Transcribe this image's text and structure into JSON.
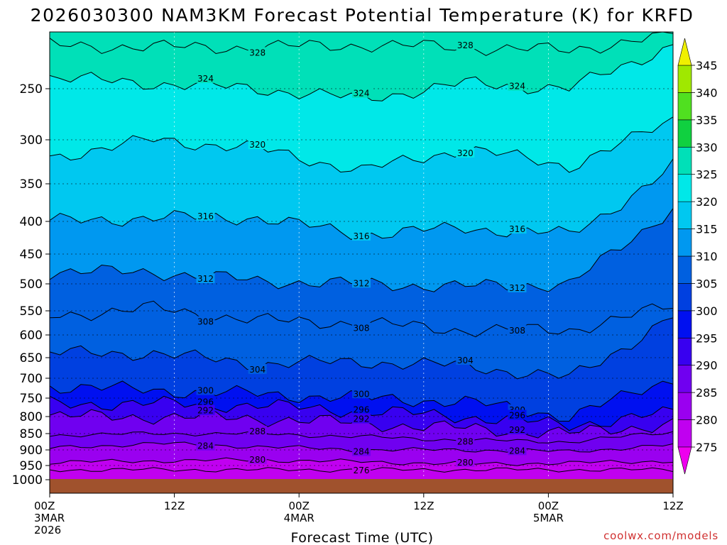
{
  "chart_data": {
    "type": "contour-filled time-height cross-section",
    "title": "2026030300 NAM3KM Forecast Potential Temperature (K) for KRFD",
    "xlabel": "Forecast Time (UTC)",
    "ylabel": "",
    "y_axis_units": "hPa (pressure)",
    "y_ticks": [
      250,
      300,
      350,
      400,
      450,
      500,
      550,
      600,
      650,
      700,
      750,
      800,
      850,
      900,
      950,
      1000
    ],
    "y_range": [
      200,
      1000
    ],
    "x_ticks": [
      {
        "hour": 0,
        "lines": [
          "00Z",
          "3MAR",
          "2026"
        ]
      },
      {
        "hour": 12,
        "lines": [
          "12Z"
        ]
      },
      {
        "hour": 24,
        "lines": [
          "00Z",
          "4MAR"
        ]
      },
      {
        "hour": 36,
        "lines": [
          "12Z"
        ]
      },
      {
        "hour": 48,
        "lines": [
          "00Z",
          "5MAR"
        ]
      },
      {
        "hour": 60,
        "lines": [
          "12Z"
        ]
      }
    ],
    "x_range": [
      0,
      60
    ],
    "colorbar": {
      "levels": [
        275,
        280,
        285,
        290,
        295,
        300,
        305,
        310,
        315,
        320,
        325,
        330,
        335,
        340,
        345
      ],
      "colors": [
        "#ee00ee",
        "#c000f0",
        "#9a00f0",
        "#7000f0",
        "#3800f0",
        "#0010f0",
        "#0040e0",
        "#0060e0",
        "#0098f0",
        "#00c8f0",
        "#00e8e8",
        "#00e0b8",
        "#10d040",
        "#50e020",
        "#a0e800",
        "#f0f000"
      ]
    },
    "contour_interval_K": 2,
    "surface_fill_color": "#a0522d",
    "series": [
      {
        "name": "theta 276K",
        "pressure": [
          965,
          965,
          965,
          965,
          965,
          965,
          965
        ],
        "hour": [
          0,
          10,
          20,
          30,
          40,
          50,
          60
        ]
      },
      {
        "name": "theta 280K",
        "pressure": [
          940,
          935,
          932,
          938,
          945,
          942,
          935
        ],
        "hour": [
          0,
          10,
          20,
          30,
          40,
          50,
          60
        ]
      },
      {
        "name": "theta 284K",
        "pressure": [
          895,
          880,
          890,
          900,
          900,
          905,
          885
        ],
        "hour": [
          0,
          10,
          20,
          30,
          40,
          50,
          60
        ]
      },
      {
        "name": "theta 288K",
        "pressure": [
          855,
          850,
          850,
          860,
          870,
          875,
          845
        ],
        "hour": [
          0,
          10,
          20,
          30,
          40,
          50,
          60
        ]
      },
      {
        "name": "theta 292K",
        "pressure": [
          800,
          800,
          805,
          820,
          835,
          850,
          820
        ],
        "hour": [
          0,
          10,
          20,
          30,
          40,
          50,
          60
        ]
      },
      {
        "name": "theta 296K",
        "pressure": [
          765,
          765,
          770,
          785,
          800,
          825,
          790
        ],
        "hour": [
          0,
          10,
          20,
          30,
          40,
          50,
          60
        ]
      },
      {
        "name": "theta 300K",
        "pressure": [
          720,
          730,
          740,
          750,
          760,
          800,
          700
        ],
        "hour": [
          0,
          10,
          20,
          30,
          40,
          50,
          60
        ]
      },
      {
        "name": "theta 304K",
        "pressure": [
          640,
          640,
          665,
          660,
          670,
          700,
          560
        ],
        "hour": [
          0,
          10,
          20,
          30,
          40,
          50,
          60
        ]
      },
      {
        "name": "theta 308K",
        "pressure": [
          560,
          545,
          570,
          575,
          590,
          590,
          540
        ],
        "hour": [
          0,
          10,
          20,
          30,
          40,
          50,
          60
        ]
      },
      {
        "name": "theta 312K",
        "pressure": [
          480,
          480,
          495,
          500,
          505,
          500,
          380
        ],
        "hour": [
          0,
          10,
          20,
          30,
          40,
          50,
          60
        ]
      },
      {
        "name": "theta 316K",
        "pressure": [
          400,
          395,
          395,
          420,
          410,
          420,
          330
        ],
        "hour": [
          0,
          10,
          20,
          30,
          40,
          50,
          60
        ]
      },
      {
        "name": "theta 320K",
        "pressure": [
          320,
          300,
          310,
          335,
          310,
          330,
          280
        ],
        "hour": [
          0,
          10,
          20,
          30,
          40,
          50,
          60
        ]
      },
      {
        "name": "theta 324K",
        "pressure": [
          240,
          245,
          250,
          260,
          245,
          250,
          210
        ],
        "hour": [
          0,
          10,
          20,
          30,
          40,
          50,
          60
        ]
      },
      {
        "name": "theta 328K",
        "pressure": [
          210,
          212,
          212,
          210,
          212,
          215,
          200
        ],
        "hour": [
          0,
          10,
          20,
          30,
          40,
          50,
          60
        ]
      }
    ],
    "contour_labels": [
      "328",
      "328",
      "324",
      "324",
      "324",
      "320",
      "320",
      "316",
      "316",
      "316",
      "312",
      "312",
      "312",
      "308",
      "308",
      "308",
      "304",
      "304",
      "300",
      "300",
      "300",
      "296",
      "296",
      "296",
      "292",
      "292",
      "292",
      "288",
      "288",
      "284",
      "284",
      "284",
      "280",
      "280",
      "276"
    ],
    "grid": true,
    "legend": "right colorbar"
  },
  "credit": "coolwx.com/models"
}
